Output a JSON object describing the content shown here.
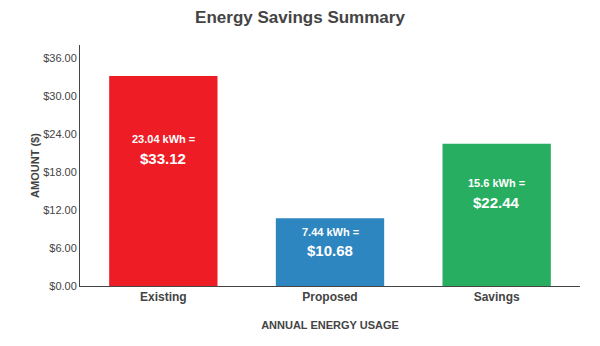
{
  "chart_data": {
    "type": "bar",
    "title": "Energy Savings Summary",
    "xlabel": "ANNUAL ENERGY USAGE",
    "ylabel": "AMOUNT ($)",
    "categories": [
      "Existing",
      "Proposed",
      "Savings"
    ],
    "values": [
      33.12,
      10.68,
      22.44
    ],
    "colors": [
      "#ee1c25",
      "#2e86c1",
      "#27ae60"
    ],
    "data_labels": true,
    "value_labels": [
      "$33.12",
      "$10.68",
      "$22.44"
    ],
    "annotations": [
      {
        "category": "Existing",
        "text": "23.04 kWh ="
      },
      {
        "category": "Proposed",
        "text": "7.44 kWh ="
      },
      {
        "category": "Savings",
        "text": "15.6 kWh ="
      }
    ],
    "ylim": [
      0,
      38
    ],
    "yticks": [
      {
        "value": 0,
        "label": "$0.00"
      },
      {
        "value": 6,
        "label": "$6.00"
      },
      {
        "value": 12,
        "label": "$12.00"
      },
      {
        "value": 18,
        "label": "$18.00"
      },
      {
        "value": 24,
        "label": "$24.00"
      },
      {
        "value": 30,
        "label": "$30.00"
      },
      {
        "value": 36,
        "label": "$36.00"
      }
    ],
    "grid": false
  }
}
